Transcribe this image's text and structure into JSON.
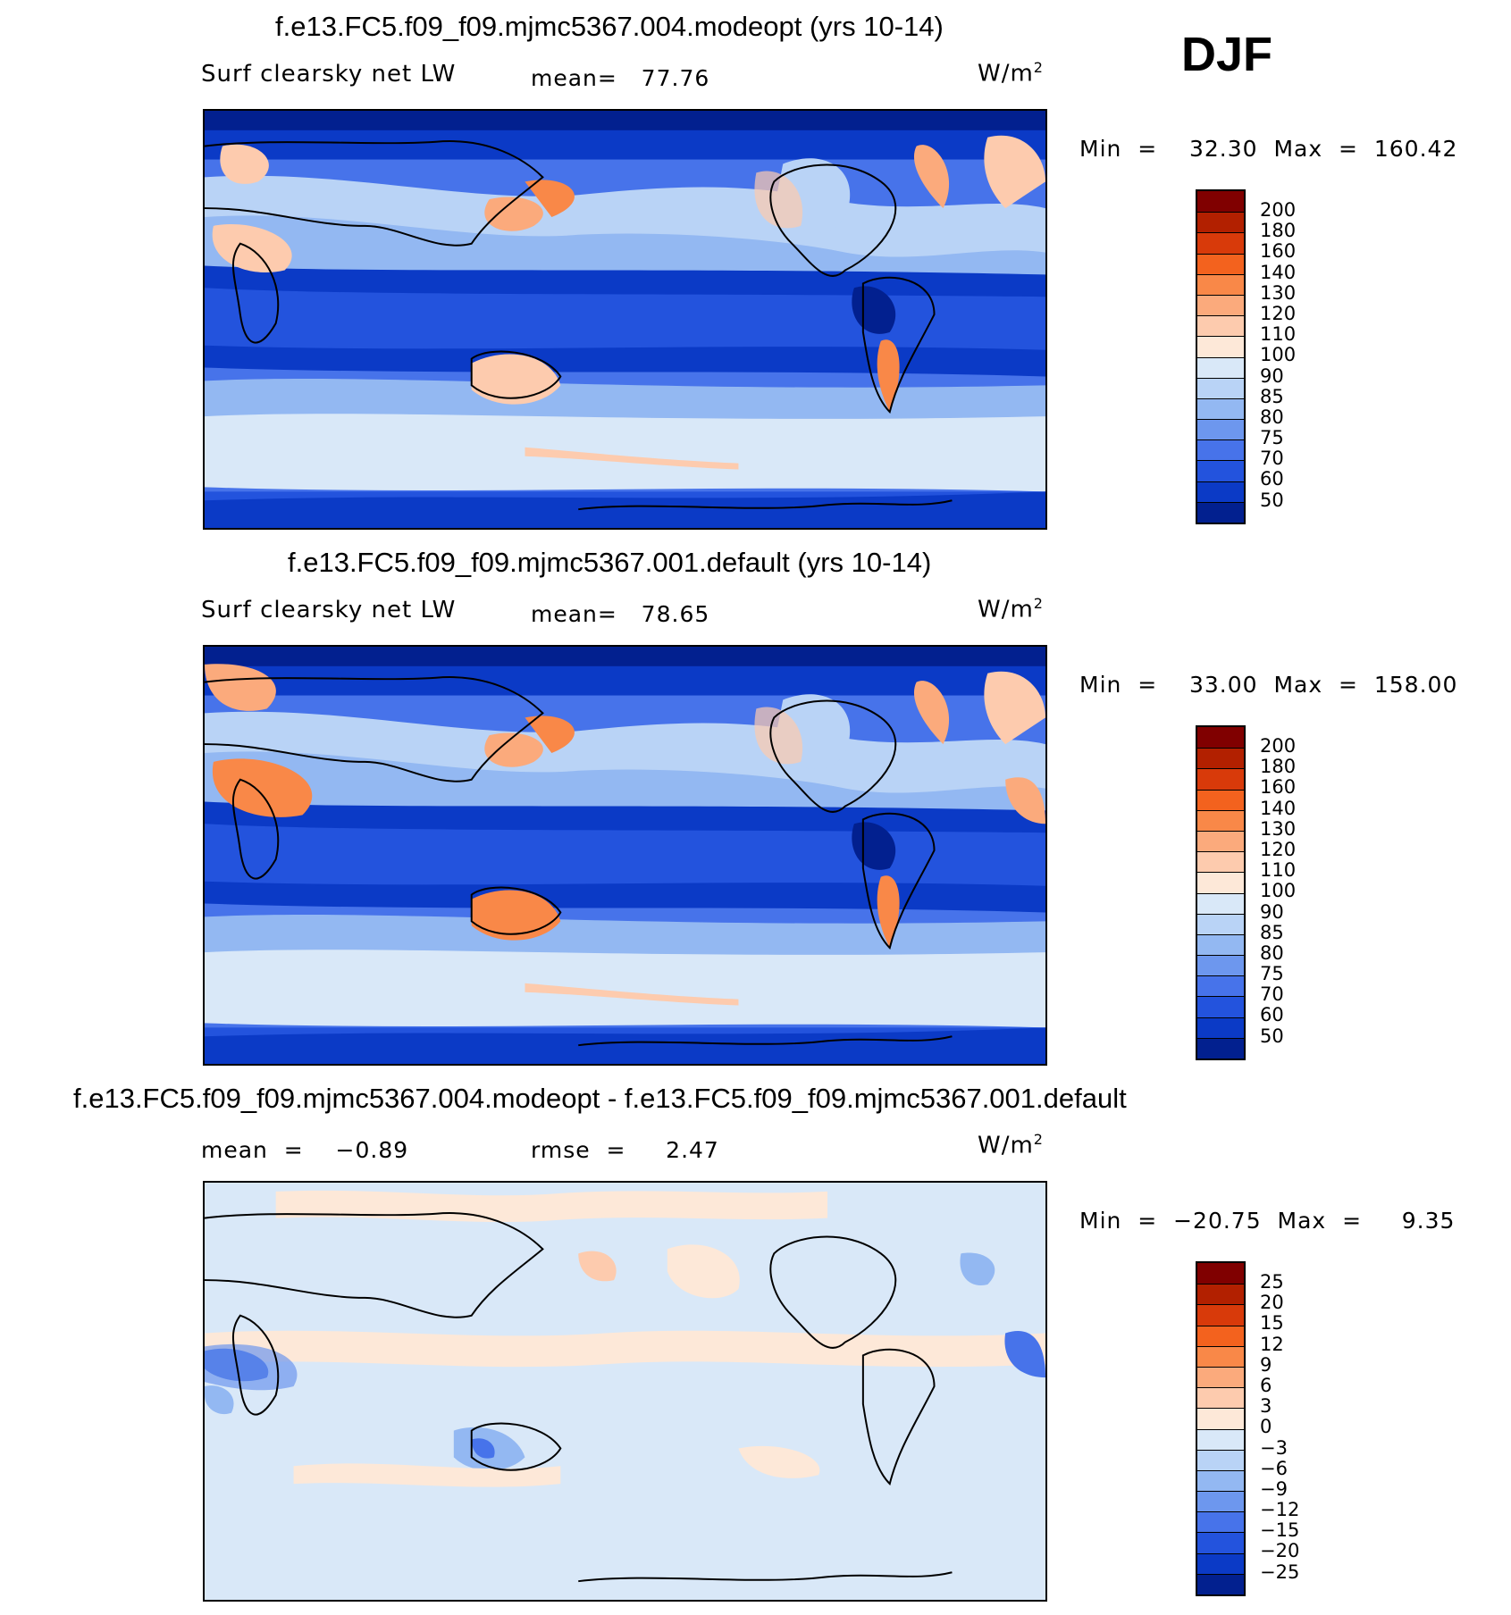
{
  "season": "DJF",
  "panels": [
    {
      "title": "f.e13.FC5.f09_f09.mjmc5367.004.modeopt (yrs 10-14)",
      "variable": "Surf clearsky net LW",
      "stat1": "mean=   77.76",
      "stat2": "",
      "units_base": "W/m",
      "units_exp": "2",
      "minmax": "Min  =    32.30  Max  =  160.42",
      "kind": "abs"
    },
    {
      "title": "f.e13.FC5.f09_f09.mjmc5367.001.default (yrs 10-14)",
      "variable": "Surf clearsky net LW",
      "stat1": "mean=   78.65",
      "stat2": "",
      "units_base": "W/m",
      "units_exp": "2",
      "minmax": "Min  =    33.00  Max  =  158.00",
      "kind": "abs"
    },
    {
      "title": "f.e13.FC5.f09_f09.mjmc5367.004.modeopt - f.e13.FC5.f09_f09.mjmc5367.001.default",
      "variable": "",
      "stat1": "mean  =    −0.89",
      "stat2": "rmse  =     2.47",
      "units_base": "W/m",
      "units_exp": "2",
      "minmax": "Min  =  −20.75  Max  =     9.35",
      "kind": "diff"
    }
  ],
  "colorbars": {
    "abs": {
      "labels": [
        "200",
        "180",
        "160",
        "140",
        "130",
        "120",
        "110",
        "100",
        "90",
        "85",
        "80",
        "75",
        "70",
        "60",
        "50"
      ],
      "colors": [
        "#800000",
        "#b22000",
        "#d83a0a",
        "#f3621e",
        "#f98848",
        "#fbaa7c",
        "#fdcbae",
        "#fde8d8",
        "#d9e8f8",
        "#b9d3f6",
        "#93b8f2",
        "#6d97ee",
        "#4773ea",
        "#2353dd",
        "#0b3ac6",
        "#02208f"
      ]
    },
    "diff": {
      "labels": [
        "25",
        "20",
        "15",
        "12",
        "9",
        "6",
        "3",
        "0",
        "−3",
        "−6",
        "−9",
        "−12",
        "−15",
        "−20",
        "−25"
      ],
      "colors": [
        "#800000",
        "#b22000",
        "#d83a0a",
        "#f3621e",
        "#f98848",
        "#fbaa7c",
        "#fdcbae",
        "#fde8d8",
        "#d9e8f8",
        "#b9d3f6",
        "#93b8f2",
        "#6d97ee",
        "#4773ea",
        "#2353dd",
        "#0b3ac6",
        "#02208f"
      ]
    }
  }
}
